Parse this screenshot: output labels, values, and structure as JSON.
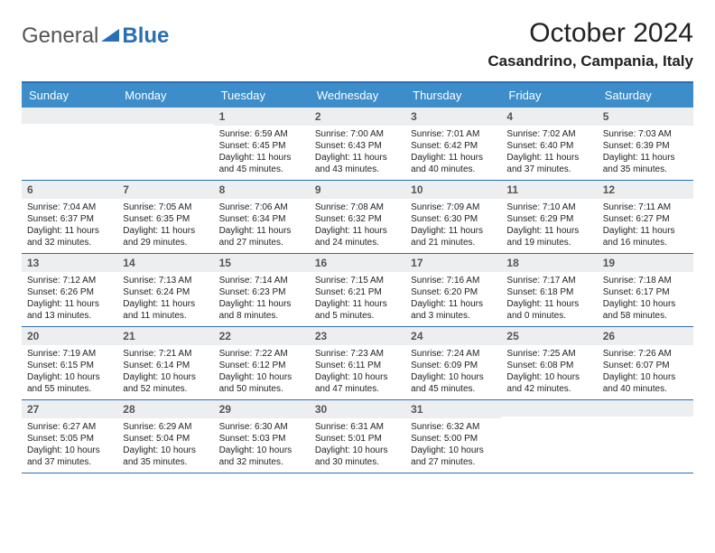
{
  "logo": {
    "main": "General",
    "accent": "Blue"
  },
  "title": "October 2024",
  "location": "Casandrino, Campania, Italy",
  "colors": {
    "header_bg": "#3c8dca",
    "header_text": "#ffffff",
    "border": "#2a6fb5",
    "num_bg": "#eceef0",
    "num_text": "#555555",
    "body_text": "#222222",
    "logo_grey": "#555555",
    "logo_blue": "#2a6fb5",
    "background": "#ffffff"
  },
  "day_names": [
    "Sunday",
    "Monday",
    "Tuesday",
    "Wednesday",
    "Thursday",
    "Friday",
    "Saturday"
  ],
  "weeks": [
    [
      null,
      null,
      {
        "n": "1",
        "sr": "6:59 AM",
        "ss": "6:45 PM",
        "dl": "11 hours and 45 minutes."
      },
      {
        "n": "2",
        "sr": "7:00 AM",
        "ss": "6:43 PM",
        "dl": "11 hours and 43 minutes."
      },
      {
        "n": "3",
        "sr": "7:01 AM",
        "ss": "6:42 PM",
        "dl": "11 hours and 40 minutes."
      },
      {
        "n": "4",
        "sr": "7:02 AM",
        "ss": "6:40 PM",
        "dl": "11 hours and 37 minutes."
      },
      {
        "n": "5",
        "sr": "7:03 AM",
        "ss": "6:39 PM",
        "dl": "11 hours and 35 minutes."
      }
    ],
    [
      {
        "n": "6",
        "sr": "7:04 AM",
        "ss": "6:37 PM",
        "dl": "11 hours and 32 minutes."
      },
      {
        "n": "7",
        "sr": "7:05 AM",
        "ss": "6:35 PM",
        "dl": "11 hours and 29 minutes."
      },
      {
        "n": "8",
        "sr": "7:06 AM",
        "ss": "6:34 PM",
        "dl": "11 hours and 27 minutes."
      },
      {
        "n": "9",
        "sr": "7:08 AM",
        "ss": "6:32 PM",
        "dl": "11 hours and 24 minutes."
      },
      {
        "n": "10",
        "sr": "7:09 AM",
        "ss": "6:30 PM",
        "dl": "11 hours and 21 minutes."
      },
      {
        "n": "11",
        "sr": "7:10 AM",
        "ss": "6:29 PM",
        "dl": "11 hours and 19 minutes."
      },
      {
        "n": "12",
        "sr": "7:11 AM",
        "ss": "6:27 PM",
        "dl": "11 hours and 16 minutes."
      }
    ],
    [
      {
        "n": "13",
        "sr": "7:12 AM",
        "ss": "6:26 PM",
        "dl": "11 hours and 13 minutes."
      },
      {
        "n": "14",
        "sr": "7:13 AM",
        "ss": "6:24 PM",
        "dl": "11 hours and 11 minutes."
      },
      {
        "n": "15",
        "sr": "7:14 AM",
        "ss": "6:23 PM",
        "dl": "11 hours and 8 minutes."
      },
      {
        "n": "16",
        "sr": "7:15 AM",
        "ss": "6:21 PM",
        "dl": "11 hours and 5 minutes."
      },
      {
        "n": "17",
        "sr": "7:16 AM",
        "ss": "6:20 PM",
        "dl": "11 hours and 3 minutes."
      },
      {
        "n": "18",
        "sr": "7:17 AM",
        "ss": "6:18 PM",
        "dl": "11 hours and 0 minutes."
      },
      {
        "n": "19",
        "sr": "7:18 AM",
        "ss": "6:17 PM",
        "dl": "10 hours and 58 minutes."
      }
    ],
    [
      {
        "n": "20",
        "sr": "7:19 AM",
        "ss": "6:15 PM",
        "dl": "10 hours and 55 minutes."
      },
      {
        "n": "21",
        "sr": "7:21 AM",
        "ss": "6:14 PM",
        "dl": "10 hours and 52 minutes."
      },
      {
        "n": "22",
        "sr": "7:22 AM",
        "ss": "6:12 PM",
        "dl": "10 hours and 50 minutes."
      },
      {
        "n": "23",
        "sr": "7:23 AM",
        "ss": "6:11 PM",
        "dl": "10 hours and 47 minutes."
      },
      {
        "n": "24",
        "sr": "7:24 AM",
        "ss": "6:09 PM",
        "dl": "10 hours and 45 minutes."
      },
      {
        "n": "25",
        "sr": "7:25 AM",
        "ss": "6:08 PM",
        "dl": "10 hours and 42 minutes."
      },
      {
        "n": "26",
        "sr": "7:26 AM",
        "ss": "6:07 PM",
        "dl": "10 hours and 40 minutes."
      }
    ],
    [
      {
        "n": "27",
        "sr": "6:27 AM",
        "ss": "5:05 PM",
        "dl": "10 hours and 37 minutes."
      },
      {
        "n": "28",
        "sr": "6:29 AM",
        "ss": "5:04 PM",
        "dl": "10 hours and 35 minutes."
      },
      {
        "n": "29",
        "sr": "6:30 AM",
        "ss": "5:03 PM",
        "dl": "10 hours and 32 minutes."
      },
      {
        "n": "30",
        "sr": "6:31 AM",
        "ss": "5:01 PM",
        "dl": "10 hours and 30 minutes."
      },
      {
        "n": "31",
        "sr": "6:32 AM",
        "ss": "5:00 PM",
        "dl": "10 hours and 27 minutes."
      },
      null,
      null
    ]
  ],
  "labels": {
    "sunrise": "Sunrise: ",
    "sunset": "Sunset: ",
    "daylight": "Daylight: "
  }
}
